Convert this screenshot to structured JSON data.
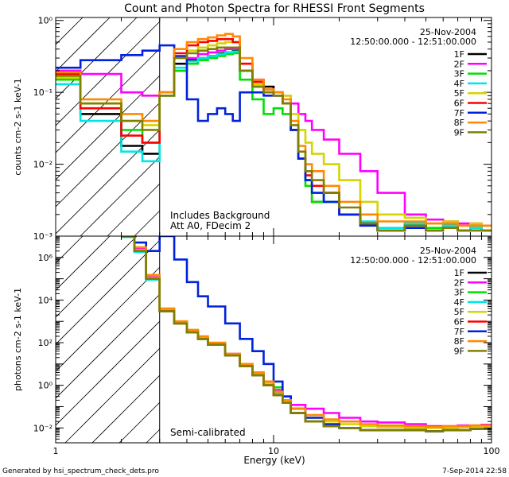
{
  "figure": {
    "title": "Count and Photon Spectra for RHESSI Front Segments",
    "footer_left": "Generated by hsi_spectrum_check_dets.pro",
    "footer_right": "7-Sep-2014 22:58"
  },
  "chart_data": [
    {
      "type": "line",
      "id": "counts",
      "title": "Count and Photon Spectra for RHESSI Front Segments",
      "xlabel": "Energy (keV)",
      "ylabel": "counts cm-2 s-1 keV-1",
      "xscale": "log",
      "yscale": "log",
      "xlim": [
        1,
        100
      ],
      "ylim": [
        0.001,
        1.1
      ],
      "date": "25-Nov-2004",
      "time_range": "12:50:00.000 - 12:51:00.000",
      "notes": [
        "Includes Background",
        "Att A0, FDecim 2"
      ],
      "x": [
        1.0,
        1.3,
        2.0,
        2.5,
        3.0,
        3.5,
        4.0,
        4.5,
        5.0,
        5.5,
        6.0,
        6.5,
        7.0,
        8.0,
        9.0,
        10.0,
        11.0,
        12.0,
        13.0,
        14.0,
        15.0,
        17.0,
        20.0,
        25.0,
        30.0,
        40.0,
        50.0,
        60.0,
        70.0,
        80.0,
        90.0,
        100.0
      ],
      "series": [
        {
          "name": "1F",
          "color": "#000000",
          "values": [
            0.17,
            0.05,
            0.018,
            0.014,
            0.09,
            0.25,
            0.28,
            0.3,
            0.32,
            0.35,
            0.36,
            0.38,
            0.2,
            0.12,
            0.12,
            0.1,
            0.07,
            0.03,
            0.012,
            0.006,
            0.003,
            0.004,
            0.002,
            0.0015,
            0.0012,
            0.0015,
            0.0012,
            0.0015,
            0.0012,
            0.0013,
            0.0012,
            0.0012
          ]
        },
        {
          "name": "2F",
          "color": "#ff00ff",
          "values": [
            0.2,
            0.18,
            0.1,
            0.09,
            0.1,
            0.2,
            0.3,
            0.34,
            0.36,
            0.38,
            0.4,
            0.4,
            0.25,
            0.15,
            0.11,
            0.1,
            0.09,
            0.07,
            0.05,
            0.04,
            0.03,
            0.022,
            0.014,
            0.008,
            0.004,
            0.002,
            0.0017,
            0.0016,
            0.0015,
            0.0015,
            0.0014,
            0.0014
          ]
        },
        {
          "name": "3F",
          "color": "#00e000",
          "values": [
            0.15,
            0.07,
            0.03,
            0.02,
            0.09,
            0.2,
            0.25,
            0.28,
            0.3,
            0.32,
            0.34,
            0.35,
            0.15,
            0.08,
            0.05,
            0.06,
            0.05,
            0.03,
            0.012,
            0.005,
            0.003,
            0.003,
            0.002,
            0.0015,
            0.0012,
            0.0015,
            0.0013,
            0.0014,
            0.0012,
            0.0013,
            0.0012,
            0.0012
          ]
        },
        {
          "name": "4F",
          "color": "#00e5e5",
          "values": [
            0.13,
            0.04,
            0.015,
            0.011,
            0.09,
            0.22,
            0.27,
            0.3,
            0.32,
            0.34,
            0.36,
            0.37,
            0.2,
            0.12,
            0.1,
            0.09,
            0.07,
            0.03,
            0.012,
            0.006,
            0.004,
            0.003,
            0.002,
            0.0016,
            0.0013,
            0.0015,
            0.0012,
            0.0014,
            0.0012,
            0.0013,
            0.0012,
            0.0012
          ]
        },
        {
          "name": "5F",
          "color": "#d4d400",
          "values": [
            0.16,
            0.07,
            0.04,
            0.035,
            0.1,
            0.3,
            0.38,
            0.42,
            0.45,
            0.48,
            0.5,
            0.5,
            0.25,
            0.13,
            0.11,
            0.1,
            0.09,
            0.05,
            0.03,
            0.02,
            0.014,
            0.01,
            0.006,
            0.003,
            0.002,
            0.0018,
            0.0015,
            0.0016,
            0.0014,
            0.0015,
            0.0014,
            0.0014
          ]
        },
        {
          "name": "6F",
          "color": "#ff0000",
          "values": [
            0.18,
            0.06,
            0.025,
            0.02,
            0.1,
            0.35,
            0.45,
            0.5,
            0.52,
            0.55,
            0.55,
            0.5,
            0.25,
            0.14,
            0.1,
            0.09,
            0.07,
            0.03,
            0.012,
            0.007,
            0.005,
            0.004,
            0.002,
            0.0015,
            0.0012,
            0.0014,
            0.0012,
            0.0013,
            0.0012,
            0.0012,
            0.0012,
            0.0012
          ]
        },
        {
          "name": "7F",
          "color": "#0022dd",
          "values": [
            0.22,
            0.28,
            0.33,
            0.38,
            0.45,
            0.32,
            0.08,
            0.04,
            0.05,
            0.06,
            0.05,
            0.04,
            0.1,
            0.1,
            0.09,
            0.09,
            0.07,
            0.03,
            0.012,
            0.006,
            0.004,
            0.003,
            0.002,
            0.0014,
            0.0012,
            0.0013,
            0.0012,
            0.0013,
            0.0012,
            0.0012,
            0.0012,
            0.0012
          ]
        },
        {
          "name": "8F",
          "color": "#ff8800",
          "values": [
            0.19,
            0.08,
            0.05,
            0.04,
            0.1,
            0.4,
            0.5,
            0.55,
            0.58,
            0.62,
            0.65,
            0.6,
            0.3,
            0.15,
            0.11,
            0.1,
            0.08,
            0.04,
            0.018,
            0.01,
            0.008,
            0.005,
            0.003,
            0.002,
            0.0016,
            0.0016,
            0.0015,
            0.0015,
            0.0014,
            0.0014,
            0.0014,
            0.0014
          ]
        },
        {
          "name": "9F",
          "color": "#808000",
          "values": [
            0.17,
            0.07,
            0.04,
            0.03,
            0.09,
            0.3,
            0.35,
            0.38,
            0.4,
            0.42,
            0.42,
            0.42,
            0.2,
            0.12,
            0.1,
            0.09,
            0.07,
            0.035,
            0.015,
            0.008,
            0.006,
            0.004,
            0.0025,
            0.0015,
            0.0012,
            0.0014,
            0.0012,
            0.0013,
            0.0012,
            0.0012,
            0.0012,
            0.0012
          ]
        }
      ]
    },
    {
      "type": "line",
      "id": "photons",
      "title": "",
      "xlabel": "Energy (keV)",
      "ylabel": "photons cm-2 s-1 keV-1",
      "xscale": "log",
      "yscale": "log",
      "xlim": [
        1,
        100
      ],
      "ylim": [
        0.002,
        10000000
      ],
      "date": "25-Nov-2004",
      "time_range": "12:50:00.000 - 12:51:00.000",
      "notes": [
        "Semi-calibrated"
      ],
      "x": [
        2.0,
        2.3,
        2.6,
        3.0,
        3.5,
        4.0,
        4.5,
        5.0,
        6.0,
        7.0,
        8.0,
        9.0,
        10.0,
        11.0,
        12.0,
        14.0,
        17.0,
        20.0,
        25.0,
        30.0,
        40.0,
        50.0,
        60.0,
        70.0,
        80.0,
        90.0,
        100.0
      ],
      "series": [
        {
          "name": "1F",
          "color": "#000000",
          "values": [
            10000000,
            2000000,
            100000,
            3000,
            800,
            300,
            150,
            80,
            25,
            8,
            3,
            1,
            0.35,
            0.15,
            0.05,
            0.02,
            0.012,
            0.01,
            0.008,
            0.008,
            0.008,
            0.007,
            0.008,
            0.008,
            0.009,
            0.009,
            0.01
          ]
        },
        {
          "name": "2F",
          "color": "#ff00ff",
          "values": [
            10000000,
            2500000,
            120000,
            3500,
            900,
            350,
            170,
            90,
            30,
            10,
            4,
            1.5,
            0.6,
            0.3,
            0.12,
            0.08,
            0.05,
            0.03,
            0.02,
            0.018,
            0.015,
            0.012,
            0.012,
            0.013,
            0.013,
            0.014,
            0.014
          ]
        },
        {
          "name": "3F",
          "color": "#00e000",
          "values": [
            9000000,
            2000000,
            100000,
            3000,
            800,
            300,
            150,
            80,
            25,
            8,
            3,
            1,
            0.8,
            0.15,
            0.05,
            0.02,
            0.012,
            0.01,
            0.008,
            0.008,
            0.008,
            0.007,
            0.008,
            0.008,
            0.009,
            0.009,
            0.01
          ]
        },
        {
          "name": "4F",
          "color": "#00e5e5",
          "values": [
            9000000,
            1800000,
            90000,
            3000,
            800,
            300,
            150,
            80,
            25,
            8,
            3,
            1,
            0.4,
            0.15,
            0.05,
            0.02,
            0.012,
            0.01,
            0.008,
            0.008,
            0.008,
            0.007,
            0.008,
            0.008,
            0.009,
            0.009,
            0.01
          ]
        },
        {
          "name": "5F",
          "color": "#d4d400",
          "values": [
            11000000,
            2200000,
            110000,
            3200,
            850,
            320,
            160,
            85,
            28,
            9,
            3.5,
            1.2,
            0.5,
            0.2,
            0.08,
            0.03,
            0.02,
            0.015,
            0.012,
            0.011,
            0.01,
            0.01,
            0.01,
            0.011,
            0.011,
            0.012,
            0.012
          ]
        },
        {
          "name": "6F",
          "color": "#ff0000",
          "values": [
            10000000,
            2000000,
            100000,
            3000,
            800,
            300,
            150,
            80,
            25,
            8,
            3,
            1,
            0.35,
            0.15,
            0.05,
            0.02,
            0.012,
            0.01,
            0.008,
            0.008,
            0.008,
            0.007,
            0.008,
            0.008,
            0.009,
            0.009,
            0.01
          ]
        },
        {
          "name": "7F",
          "color": "#0022dd",
          "values": [
            10000000,
            5000000,
            2000000,
            10000000,
            800000,
            70000,
            15000,
            5000,
            800,
            150,
            40,
            10,
            1.5,
            0.3,
            0.08,
            0.03,
            0.015,
            0.01,
            0.008,
            0.008,
            0.008,
            0.007,
            0.008,
            0.008,
            0.009,
            0.009,
            0.01
          ]
        },
        {
          "name": "8F",
          "color": "#ff8800",
          "values": [
            11000000,
            3000000,
            150000,
            4000,
            1000,
            400,
            200,
            100,
            30,
            10,
            4,
            1.5,
            0.5,
            0.2,
            0.08,
            0.04,
            0.025,
            0.02,
            0.015,
            0.013,
            0.012,
            0.011,
            0.012,
            0.012,
            0.013,
            0.013,
            0.014
          ]
        },
        {
          "name": "9F",
          "color": "#808000",
          "values": [
            10000000,
            2000000,
            100000,
            3000,
            800,
            300,
            150,
            80,
            25,
            8,
            3,
            1,
            0.35,
            0.15,
            0.05,
            0.02,
            0.012,
            0.01,
            0.008,
            0.008,
            0.008,
            0.007,
            0.008,
            0.008,
            0.009,
            0.009,
            0.01
          ]
        }
      ]
    }
  ]
}
